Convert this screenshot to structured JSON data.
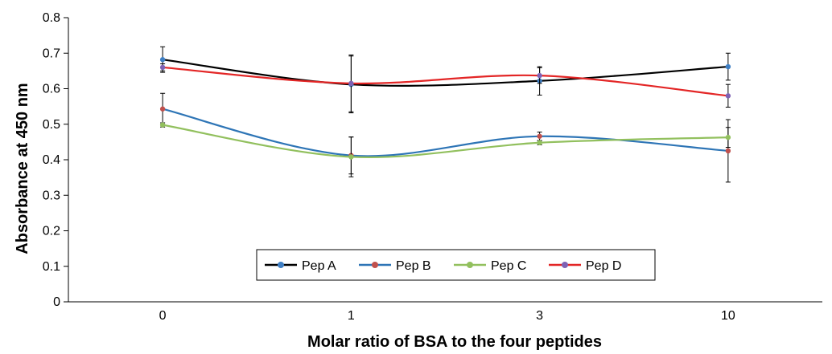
{
  "chart_data": {
    "type": "line",
    "title": "",
    "xlabel": "Molar ratio of BSA to the four peptides",
    "ylabel": "Absorbance at 450 nm",
    "categories": [
      "0",
      "1",
      "3",
      "10"
    ],
    "ylim": [
      0,
      0.8
    ],
    "yticks": [
      "0",
      "0.1",
      "0.2",
      "0.3",
      "0.4",
      "0.5",
      "0.6",
      "0.7",
      "0.8"
    ],
    "grid": false,
    "legend_position": "bottom-center, inside plot",
    "series": [
      {
        "name": "Pep A",
        "line_color": "#000000",
        "marker_color": "#3f7fc4",
        "values": [
          0.682,
          0.612,
          0.622,
          0.662
        ],
        "errors": [
          0.036,
          0.08,
          0.04,
          0.038
        ]
      },
      {
        "name": "Pep B",
        "line_color": "#2e75b6",
        "marker_color": "#c0504d",
        "values": [
          0.543,
          0.412,
          0.466,
          0.425
        ],
        "errors": [
          0.044,
          0.052,
          0.012,
          0.088
        ]
      },
      {
        "name": "Pep C",
        "line_color": "#92c05e",
        "marker_color": "#92c05e",
        "values": [
          0.498,
          0.408,
          0.448,
          0.463
        ],
        "errors": [
          0.006,
          0.056,
          0.006,
          0.028
        ]
      },
      {
        "name": "Pep D",
        "line_color": "#e32626",
        "marker_color": "#7e62b4",
        "values": [
          0.66,
          0.615,
          0.637,
          0.58
        ],
        "errors": [
          0.01,
          0.08,
          0.022,
          0.032
        ]
      }
    ]
  }
}
